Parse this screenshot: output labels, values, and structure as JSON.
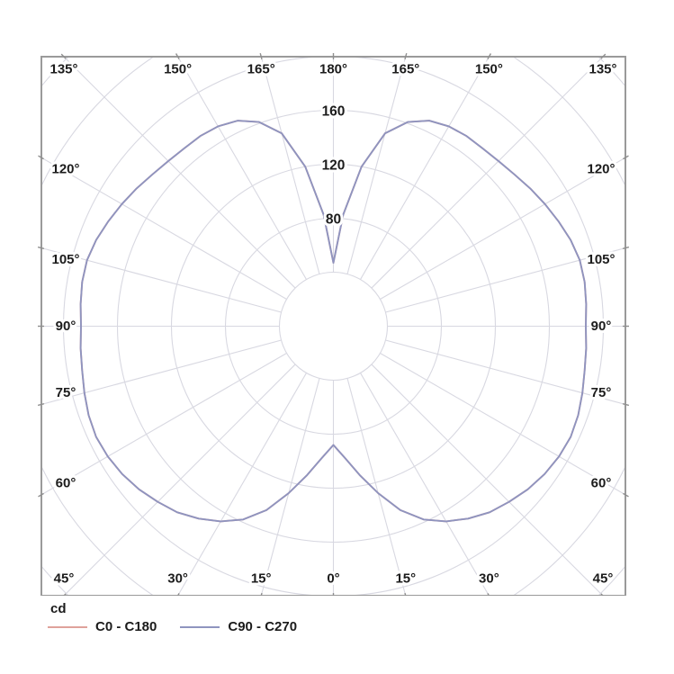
{
  "chart_data": {
    "type": "polar",
    "subtype": "photometric-intensity-distribution",
    "units": "cd",
    "angle_unit": "deg",
    "angle_tick_step_deg": 15,
    "angle_labels": [
      {
        "deg": 0,
        "label": "0°"
      },
      {
        "deg": 15,
        "label": "15°"
      },
      {
        "deg": -15,
        "label": "15°"
      },
      {
        "deg": 30,
        "label": "30°"
      },
      {
        "deg": -30,
        "label": "30°"
      },
      {
        "deg": 45,
        "label": "45°"
      },
      {
        "deg": -45,
        "label": "45°"
      },
      {
        "deg": 60,
        "label": "60°"
      },
      {
        "deg": -60,
        "label": "60°"
      },
      {
        "deg": 75,
        "label": "75°"
      },
      {
        "deg": -75,
        "label": "75°"
      },
      {
        "deg": 90,
        "label": "90°"
      },
      {
        "deg": -90,
        "label": "90°"
      },
      {
        "deg": 105,
        "label": "105°"
      },
      {
        "deg": -105,
        "label": "105°"
      },
      {
        "deg": 120,
        "label": "120°"
      },
      {
        "deg": -120,
        "label": "120°"
      },
      {
        "deg": 135,
        "label": "135°"
      },
      {
        "deg": -135,
        "label": "135°"
      },
      {
        "deg": 150,
        "label": "150°"
      },
      {
        "deg": -150,
        "label": "150°"
      },
      {
        "deg": 165,
        "label": "165°"
      },
      {
        "deg": -165,
        "label": "165°"
      },
      {
        "deg": 180,
        "label": "180°"
      }
    ],
    "radial_axis": {
      "tick_step_cd": 40,
      "max_ring_cd": 280,
      "labeled_ticks": [
        {
          "cd": 160,
          "label": "160"
        },
        {
          "cd": 120,
          "label": "120"
        },
        {
          "cd": 80,
          "label": "80"
        }
      ]
    },
    "gamma_step_deg": 5,
    "gamma_range_deg": [
      0,
      180
    ],
    "symmetric_mirror": true,
    "series": [
      {
        "name": "C0 - C180",
        "color": "#dfa29b",
        "values_cd": [
          88,
          98,
          112,
          128,
          145,
          158,
          167,
          174,
          180,
          184,
          188,
          191,
          193,
          194,
          193,
          191,
          189,
          188,
          187,
          188,
          189,
          189,
          187,
          184,
          181,
          178,
          175,
          173,
          172,
          172,
          171,
          168,
          161,
          148,
          120,
          83,
          47
        ]
      },
      {
        "name": "C90 - C270",
        "color": "#8f94bf",
        "values_cd": [
          88,
          98,
          112,
          128,
          145,
          158,
          167,
          174,
          180,
          184,
          188,
          191,
          193,
          194,
          193,
          191,
          189,
          188,
          187,
          188,
          189,
          189,
          187,
          184,
          181,
          178,
          175,
          173,
          172,
          172,
          171,
          168,
          161,
          148,
          120,
          83,
          47
        ]
      }
    ],
    "legend": {
      "title": "cd"
    },
    "colors": {
      "grid": "#d8d8e1",
      "border": "#9a9a9a",
      "tick": "#8f8f8f",
      "label_text": "#1c1c1c",
      "background": "#ffffff"
    }
  }
}
